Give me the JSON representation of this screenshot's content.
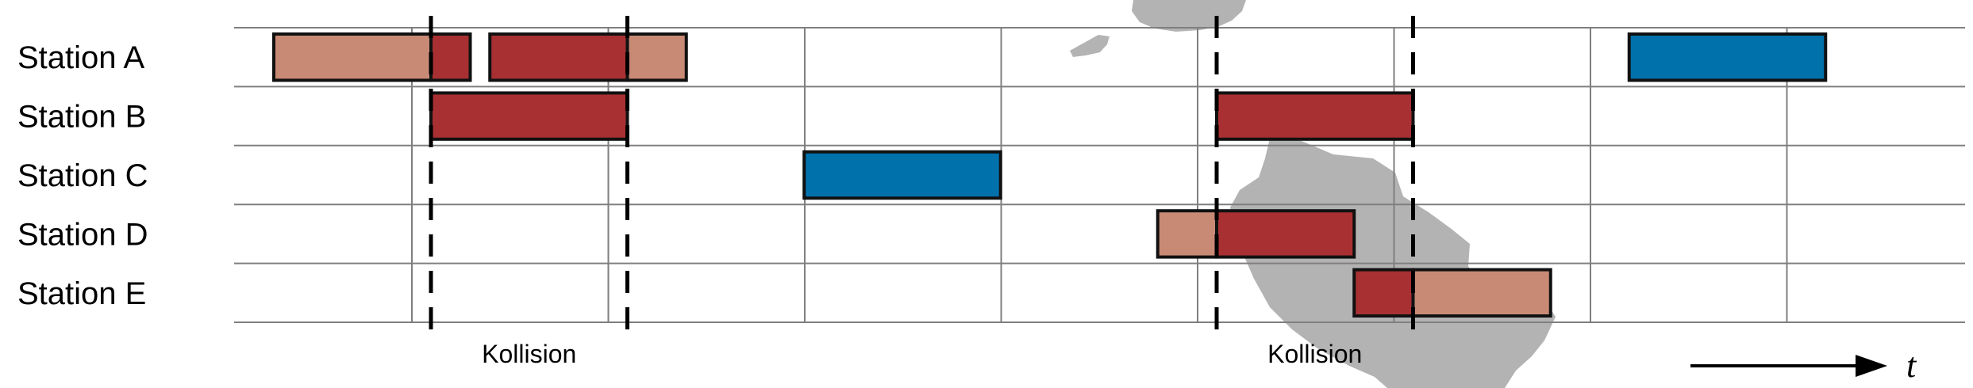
{
  "rows": [
    {
      "label": "Station A"
    },
    {
      "label": "Station B"
    },
    {
      "label": "Station C"
    },
    {
      "label": "Station D"
    },
    {
      "label": "Station E"
    }
  ],
  "timeline": {
    "slots_visible": 8.83,
    "blocks": [
      {
        "row": 0,
        "start": -0.8,
        "end": 0,
        "kind": "light"
      },
      {
        "row": 0,
        "start": 0,
        "end": 0.2,
        "kind": "dark"
      },
      {
        "row": 0,
        "start": 0.3,
        "end": 1.0,
        "kind": "dark"
      },
      {
        "row": 0,
        "start": 1.0,
        "end": 1.3,
        "kind": "light"
      },
      {
        "row": 1,
        "start": 0,
        "end": 1.0,
        "kind": "dark"
      },
      {
        "row": 2,
        "start": 1.9,
        "end": 2.9,
        "kind": "blue"
      },
      {
        "row": 0,
        "start": 6.1,
        "end": 7.1,
        "kind": "blue"
      },
      {
        "row": 1,
        "start": 4.0,
        "end": 5.0,
        "kind": "dark"
      },
      {
        "row": 3,
        "start": 3.7,
        "end": 4.0,
        "kind": "light"
      },
      {
        "row": 3,
        "start": 4.0,
        "end": 4.7,
        "kind": "dark"
      },
      {
        "row": 4,
        "start": 4.7,
        "end": 5.0,
        "kind": "dark"
      },
      {
        "row": 4,
        "start": 5.0,
        "end": 5.7,
        "kind": "light"
      }
    ],
    "collision_markers": [
      0,
      1.0,
      4.0,
      5.0
    ],
    "collisions": [
      {
        "label": "Kollision",
        "center": 0.5
      },
      {
        "label": "Kollision",
        "center": 4.5
      }
    ]
  },
  "axis": {
    "label": "t"
  },
  "colors": {
    "dark": "#a83032",
    "light": "#c98a75",
    "blue": "#0071ab",
    "grid": "#7f7f7f",
    "outline": "#111111",
    "background_map": "#b3b3b3"
  }
}
